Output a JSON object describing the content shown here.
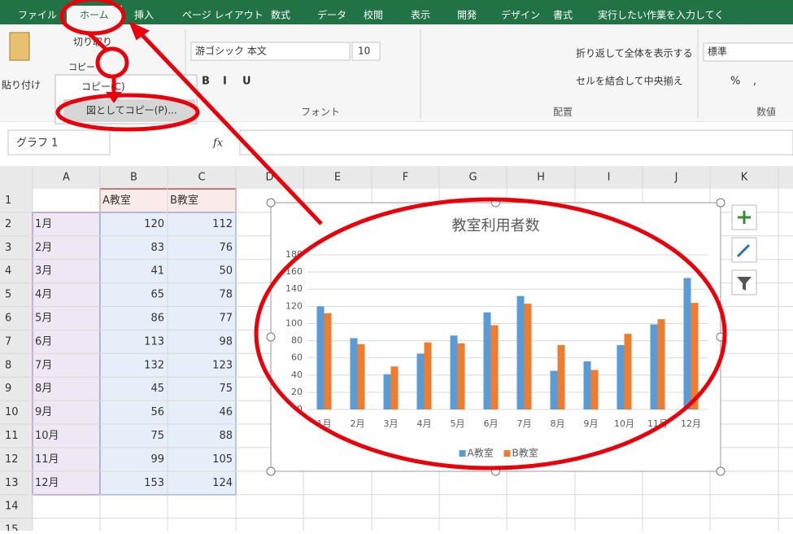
{
  "ribbon": {
    "tabs": [
      "ファイル",
      "ホーム",
      "挿入",
      "ページ レイアウト",
      "数式",
      "データ",
      "校閲",
      "表示",
      "開発",
      "デザイン",
      "書式",
      "実行したい作業を入力してく"
    ],
    "clipboard": {
      "cut": "切り取り",
      "copy": "コピー",
      "paste": "貼り付け"
    },
    "copy_menu": [
      "コピー(C)",
      "図としてコピー(P)..."
    ],
    "font": {
      "name": "游ゴシック 本文",
      "size": "10",
      "styles": [
        "B",
        "I",
        "U"
      ]
    },
    "alignment": {
      "wrap": "折り返して全体を表示する",
      "merge": "セルを結合して中央揃え"
    },
    "number": {
      "format": "標準",
      "symbols": [
        "%",
        ","
      ]
    },
    "groups": [
      "フォント",
      "配置",
      "数値"
    ]
  },
  "formula_bar": {
    "name_box": "グラフ 1",
    "fx": "fx"
  },
  "sheet": {
    "columns": [
      "A",
      "B",
      "C",
      "D",
      "E",
      "F",
      "G",
      "H",
      "I",
      "J",
      "K"
    ],
    "rows": [
      1,
      2,
      3,
      4,
      5,
      6,
      7,
      8,
      9,
      10,
      11,
      12,
      13,
      14,
      15
    ]
  },
  "chart_data": {
    "type": "bar",
    "title": "教室利用者数",
    "categories": [
      "1月",
      "2月",
      "3月",
      "4月",
      "5月",
      "6月",
      "7月",
      "8月",
      "9月",
      "10月",
      "11月",
      "12月"
    ],
    "series": [
      {
        "name": "A教室",
        "color": "#5b9bd5",
        "values": [
          120,
          83,
          41,
          65,
          86,
          113,
          132,
          45,
          56,
          75,
          99,
          153
        ]
      },
      {
        "name": "B教室",
        "color": "#ed7d31",
        "values": [
          112,
          76,
          50,
          78,
          77,
          98,
          123,
          75,
          46,
          88,
          105,
          124
        ]
      }
    ],
    "ylim": [
      0,
      180
    ],
    "yticks": [
      0,
      20,
      40,
      60,
      80,
      100,
      120,
      140,
      160,
      180
    ],
    "grid": true,
    "legend": "bottom"
  }
}
